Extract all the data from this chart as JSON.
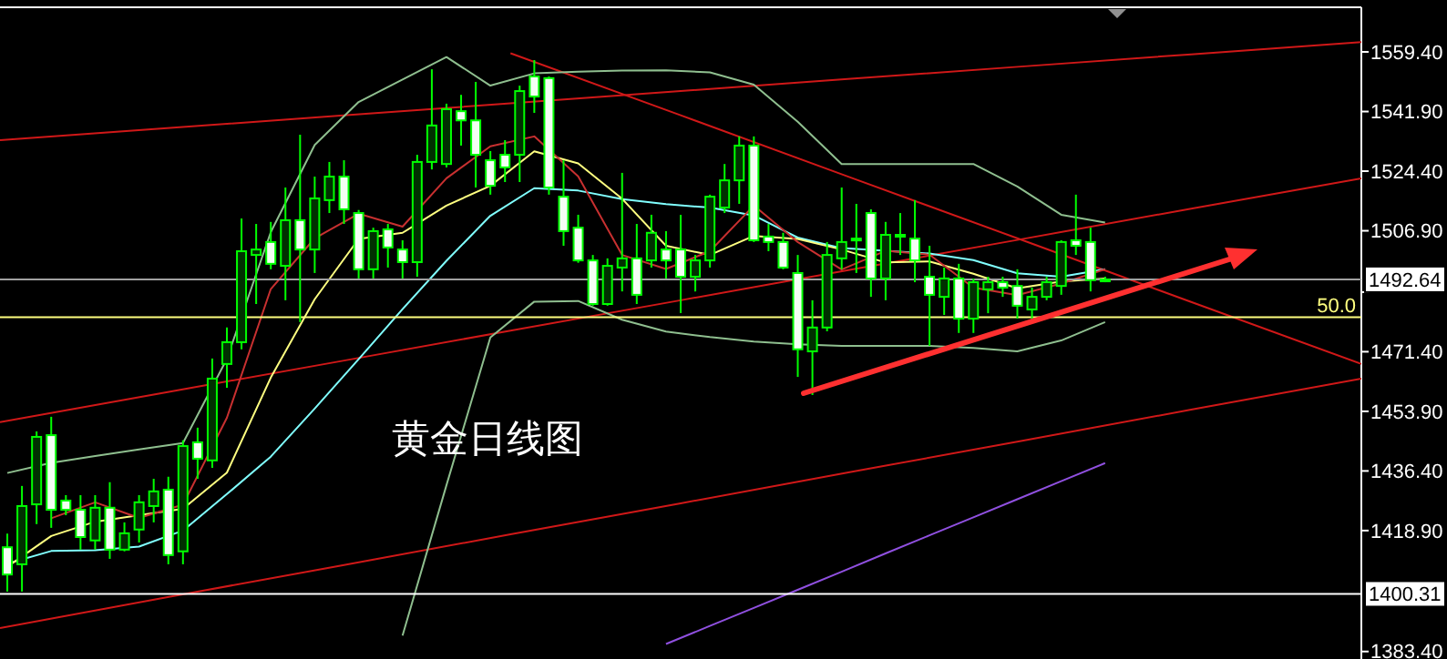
{
  "chart_data": [
    {
      "type": "candlestick",
      "color": "#00ff00",
      "tick_labels": "y",
      "annotations": [
        "黄金日线图",
        {
          "text": "50.0",
          "y": 1481.5
        }
      ],
      "ylim": [
        1381.2,
        1572.5
      ],
      "yticks": [
        {
          "value": 1559.4,
          "label": "1559.40"
        },
        {
          "value": 1541.9,
          "label": "1541.90"
        },
        {
          "value": 1524.4,
          "label": "1524.40"
        },
        {
          "value": 1506.9,
          "label": "1506.90"
        },
        {
          "value": 1488.9,
          "label": null
        },
        {
          "value": 1471.4,
          "label": "1471.40"
        },
        {
          "value": 1453.9,
          "label": "1453.90"
        },
        {
          "value": 1436.4,
          "label": "1436.40"
        },
        {
          "value": 1418.9,
          "label": "1418.90"
        },
        {
          "value": 1383.4,
          "label": "1383.40"
        }
      ],
      "categories": [
        null,
        null,
        null,
        null,
        null,
        null,
        null,
        null,
        null,
        null,
        null,
        null,
        null,
        null,
        null,
        null,
        null,
        null,
        null,
        null,
        null,
        null,
        null,
        null,
        null,
        null,
        null,
        null,
        null,
        null,
        null,
        null,
        null,
        null,
        null,
        null,
        null,
        null,
        null,
        null,
        null,
        null,
        null,
        null,
        null,
        null,
        null,
        null,
        null,
        null,
        null,
        null,
        null,
        null,
        null,
        null,
        null,
        null,
        null,
        null,
        null,
        null,
        null,
        null,
        null,
        null,
        null,
        null,
        null,
        null,
        null,
        null,
        null,
        null,
        null,
        null,
        null,
        null,
        null,
        null,
        null,
        null,
        null,
        null,
        null,
        null,
        null,
        null,
        null,
        null,
        null,
        null,
        null
      ],
      "ohlc": [
        [
          1414,
          1418,
          1401,
          1406
        ],
        [
          1409,
          1432,
          1401,
          1426.1
        ],
        [
          1426.6,
          1448,
          1420.8,
          1446.4
        ],
        [
          1446.9,
          1452.3,
          1419.7,
          1425
        ],
        [
          1427.7,
          1429.3,
          1423.4,
          1425
        ],
        [
          1425,
          1429.3,
          1413.3,
          1417
        ],
        [
          1416,
          1429.3,
          1413.3,
          1425.6
        ],
        [
          1425.6,
          1433.1,
          1410.6,
          1413.3
        ],
        [
          1413.3,
          1421.3,
          1412.8,
          1418.1
        ],
        [
          1419.2,
          1429.3,
          1415.4,
          1427.2
        ],
        [
          1426.1,
          1434.1,
          1421.3,
          1430.4
        ],
        [
          1430.9,
          1434.7,
          1409,
          1411.7
        ],
        [
          1412.8,
          1445.4,
          1409,
          1443.7
        ],
        [
          1444.8,
          1449.1,
          1434.1,
          1440
        ],
        [
          1439.5,
          1469.4,
          1437.3,
          1463.5
        ],
        [
          1467.8,
          1478.5,
          1460.8,
          1474.2
        ],
        [
          1474.2,
          1510.5,
          1472.1,
          1500.9
        ],
        [
          1499.8,
          1508.9,
          1485.4,
          1501.4
        ],
        [
          1503.6,
          1509.5,
          1495.6,
          1497.2
        ],
        [
          1496.6,
          1519.6,
          1486.5,
          1510
        ],
        [
          1510,
          1535.1,
          1480.1,
          1501.4
        ],
        [
          1501.4,
          1522.8,
          1494.5,
          1516.4
        ],
        [
          1515.9,
          1527.1,
          1512.1,
          1522.8
        ],
        [
          1522.8,
          1527.6,
          1508.9,
          1513.2
        ],
        [
          1512.1,
          1513,
          1492.9,
          1495.6
        ],
        [
          1495.6,
          1507.8,
          1492.9,
          1506.8
        ],
        [
          1507.3,
          1508.9,
          1496.1,
          1502
        ],
        [
          1501.4,
          1504.1,
          1492.9,
          1497.7
        ],
        [
          1497.7,
          1529.2,
          1493.4,
          1527.1
        ],
        [
          1527.1,
          1554.3,
          1524.9,
          1537.8
        ],
        [
          1526.5,
          1544.2,
          1525.5,
          1542.6
        ],
        [
          1542,
          1546.8,
          1531.9,
          1539.3
        ],
        [
          1539.3,
          1550.6,
          1519.6,
          1529.2
        ],
        [
          1527.6,
          1530.3,
          1517.5,
          1520.1
        ],
        [
          1529.2,
          1533.5,
          1521.2,
          1525.5
        ],
        [
          1529.2,
          1549.5,
          1521.2,
          1547.9
        ],
        [
          1552.2,
          1557,
          1541.5,
          1546.3
        ],
        [
          1551.7,
          1552.2,
          1517.5,
          1519.6
        ],
        [
          1516.9,
          1527.6,
          1502.5,
          1506.8
        ],
        [
          1507.8,
          1511.6,
          1497.5,
          1498.2
        ],
        [
          1498.2,
          1499.8,
          1484.9,
          1485.4
        ],
        [
          1485.4,
          1498.8,
          1484.9,
          1496.6
        ],
        [
          1496.1,
          1523.9,
          1489.1,
          1498.8
        ],
        [
          1498.8,
          1508.9,
          1485.4,
          1488.1
        ],
        [
          1498.2,
          1511.6,
          1496.1,
          1506.3
        ],
        [
          1501.4,
          1506.8,
          1492.9,
          1498.2
        ],
        [
          1501.4,
          1511.6,
          1482.7,
          1493.4
        ],
        [
          1493.4,
          1499.8,
          1489.1,
          1498.2
        ],
        [
          1498.2,
          1517.5,
          1496.1,
          1516.9
        ],
        [
          1513.7,
          1526.5,
          1512.1,
          1521.7
        ],
        [
          1521.7,
          1534.6,
          1514.8,
          1531.9
        ],
        [
          1531.9,
          1534.6,
          1503.6,
          1504.1
        ],
        [
          1505.2,
          1508.9,
          1500.9,
          1503.6
        ],
        [
          1503.6,
          1506.3,
          1495.6,
          1496.1
        ],
        [
          1494.5,
          1499.8,
          1464,
          1472.1
        ],
        [
          1471.5,
          1486.5,
          1458.7,
          1478.5
        ],
        [
          1478.5,
          1503.6,
          1477.4,
          1499.8
        ],
        [
          1498.8,
          1519.6,
          1495.6,
          1503.6
        ],
        [
          1504.6,
          1514.8,
          1494.5,
          1504.1
        ],
        [
          1512.1,
          1513.2,
          1487.5,
          1492.9
        ],
        [
          1492.9,
          1509.5,
          1486.5,
          1505.7
        ],
        [
          1505.7,
          1512.1,
          1499.8,
          1505.2
        ],
        [
          1504.6,
          1515.9,
          1491.8,
          1498.2
        ],
        [
          1493.4,
          1502.5,
          1473.1,
          1488.1
        ],
        [
          1487.5,
          1496.1,
          1482.2,
          1492.9
        ],
        [
          1492.9,
          1497.2,
          1476.9,
          1481.1
        ],
        [
          1481.1,
          1492.9,
          1476.9,
          1491.8
        ],
        [
          1489.7,
          1493.4,
          1482.7,
          1491.8
        ],
        [
          1491.8,
          1493.4,
          1487.5,
          1490.2
        ],
        [
          1490.7,
          1495.6,
          1481.1,
          1484.9
        ],
        [
          1483.8,
          1490.2,
          1480.1,
          1487.5
        ],
        [
          1487.5,
          1493.4,
          1486.5,
          1491.8
        ],
        [
          1490.7,
          1504.1,
          1488.1,
          1503.6
        ],
        [
          1504.1,
          1517.5,
          1499.8,
          1502.5
        ],
        [
          1503.6,
          1507.8,
          1489.1,
          1492.4
        ],
        [
          1492.4,
          1493.4,
          1491.8,
          1492.6
        ],
        null,
        null,
        null,
        null,
        null,
        null,
        null,
        null,
        null,
        null,
        null,
        null,
        null,
        null,
        null,
        null,
        null
      ],
      "ref_lines": [
        {
          "axis": "y",
          "value": 1492.64,
          "label": "1492.64",
          "color": "#a0a0a0"
        },
        {
          "axis": "y",
          "value": 1481.5,
          "color": "#ffff80"
        },
        {
          "axis": "y",
          "value": 1400.31,
          "label": "1400.31",
          "color": "#ffffff"
        }
      ]
    },
    {
      "type": "line",
      "tick_labels": false,
      "ylim": [
        1381.2,
        1572.5
      ],
      "categories": [
        null,
        null,
        null,
        null,
        null,
        null,
        null,
        null,
        null,
        null,
        null,
        null,
        null,
        null,
        null,
        null,
        null,
        null,
        null,
        null,
        null,
        null,
        null,
        null,
        null,
        null
      ],
      "series": [
        {
          "color": "#8fbf8f",
          "values": [
            1435.8,
            1438.8,
            1440.8,
            1442.7,
            1444.6,
            1469.3,
            1506.5,
            1532.1,
            1544.7,
            1551.3,
            1557.9,
            1549.5,
            1553.1,
            1553.6,
            1553.9,
            1554,
            1553.4,
            1549.8,
            1538.9,
            1526.5,
            1526.5,
            1526.5,
            1526.5,
            1519.9,
            1511.6,
            1509.3
          ]
        },
        {
          "color": "#8fbf8f",
          "values": [
            null,
            null,
            null,
            null,
            null,
            null,
            null,
            null,
            null,
            1388.1,
            1432.2,
            1475.6,
            1486.1,
            1486.3,
            1480.8,
            1477.3,
            1475.7,
            1474.4,
            1473.6,
            1473.1,
            1473.1,
            1473.1,
            1472.5,
            1471.5,
            1474.7,
            1480.1
          ]
        },
        {
          "color": "#80ffff",
          "values": [
            1409.2,
            1412.9,
            1413.1,
            1414.2,
            1418.9,
            1429.6,
            1440.6,
            1454.7,
            1469.2,
            1483.9,
            1498.1,
            1511.3,
            1519.4,
            1518.7,
            1516.2,
            1514.7,
            1513.7,
            1511.4,
            1504.9,
            1501.8,
            1501,
            1500.2,
            1498.3,
            1494.4,
            1493.4,
            1495.6
          ]
        },
        {
          "color": "#ffff80",
          "values": [
            1408.3,
            1417.3,
            1421.5,
            1423.4,
            1425.3,
            1435.9,
            1463.8,
            1486.8,
            1504.5,
            1506.3,
            1514.3,
            1520.1,
            1530.2,
            1526.7,
            1516.3,
            1502.5,
            1499.8,
            1505.4,
            1504.5,
            1501.4,
            1497.6,
            1497.9,
            1494.3,
            1490,
            1492,
            1492.9
          ]
        },
        {
          "color": "#c83030",
          "values": [
            null,
            1422.5,
            1427.2,
            1422.6,
            1426.5,
            1452,
            1489.8,
            1504.7,
            1511.9,
            1508.1,
            1522.3,
            1531.7,
            1534.6,
            1522.9,
            1499.8,
            1495.7,
            1500.9,
            1514.3,
            1503.6,
            1495.5,
            1501,
            1499.9,
            1490.2,
            1488,
            1491.4,
            1495.6
          ]
        },
        {
          "color": "#9050e0",
          "values": [
            null,
            null,
            null,
            null,
            null,
            null,
            null,
            null,
            null,
            null,
            null,
            null,
            null,
            null,
            null,
            1385.6,
            1390.9,
            1396.2,
            1401.5,
            1406.8,
            1412.2,
            1417.5,
            1422.8,
            1428.1,
            1433.4,
            1438.7
          ]
        }
      ]
    },
    {
      "type": "line",
      "tick_labels": false,
      "ylim": [
        1381.2,
        1572.5
      ],
      "categories": [
        null,
        null,
        null,
        null,
        null,
        null,
        null,
        null,
        null
      ],
      "series": [
        {
          "color": "#d01818",
          "values": [
            1533.5,
            1537.1,
            1540.7,
            1544.3,
            1547.9,
            1551.5,
            1555.1,
            1558.7,
            1562.3
          ]
        },
        {
          "color": "#d01818",
          "values": [
            1450.7,
            1459.7,
            1468.6,
            1477.6,
            1486.5,
            1495.5,
            1504.4,
            1513.4,
            1522.3
          ]
        },
        {
          "color": "#d01818",
          "values": [
            1390.3,
            1399.5,
            1408.6,
            1417.8,
            1426.9,
            1436.1,
            1445.2,
            1454.4,
            1463.5
          ]
        },
        {
          "color": "#d01818",
          "values": [
            null,
            null,
            null,
            1559,
            1540.8,
            1522.5,
            1504.3,
            1486,
            1467.8
          ]
        }
      ]
    }
  ]
}
